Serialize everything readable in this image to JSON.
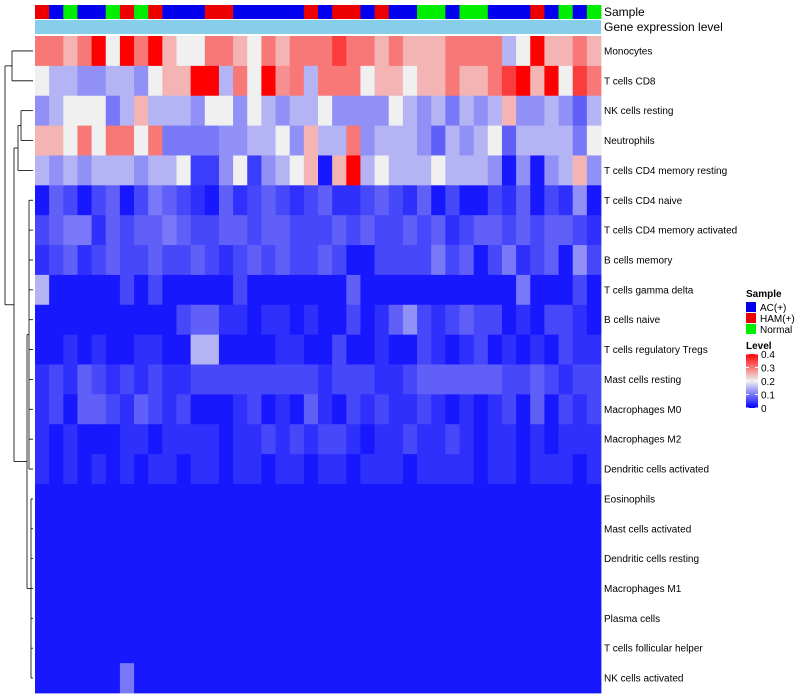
{
  "chart_data": {
    "type": "heatmap",
    "annotation_labels": {
      "sample": "Sample",
      "expression": "Gene expression level"
    },
    "rows": [
      "Monocytes",
      "T cells CD8",
      "NK cells resting",
      "Neutrophils",
      "T cells CD4 memory resting",
      "T cells CD4 naive",
      "T cells CD4 memory activated",
      "B cells memory",
      "T cells gamma delta",
      "B cells naive",
      "T cells regulatory  Tregs",
      "Mast cells resting",
      "Macrophages M0",
      "Macrophages M2",
      "Dendritic cells activated",
      "Eosinophils",
      "Mast cells activated",
      "Dendritic cells resting",
      "Macrophages M1",
      "Plasma cells",
      "T cells follicular helper",
      "NK cells activated"
    ],
    "sample_groups": [
      "HAM(+)",
      "AC(+)",
      "Normal",
      "AC(+)",
      "AC(+)",
      "Normal",
      "HAM(+)",
      "Normal",
      "HAM(+)",
      "AC(+)",
      "AC(+)",
      "AC(+)",
      "HAM(+)",
      "HAM(+)",
      "AC(+)",
      "AC(+)",
      "AC(+)",
      "AC(+)",
      "AC(+)",
      "HAM(+)",
      "AC(+)",
      "HAM(+)",
      "HAM(+)",
      "AC(+)",
      "HAM(+)",
      "AC(+)",
      "AC(+)",
      "Normal",
      "Normal",
      "AC(+)",
      "Normal",
      "Normal",
      "AC(+)",
      "AC(+)",
      "AC(+)",
      "HAM(+)",
      "AC(+)",
      "Normal",
      "AC(+)",
      "Normal"
    ],
    "values": [
      [
        0.3,
        0.3,
        0.25,
        0.3,
        0.4,
        0.2,
        0.4,
        0.3,
        0.4,
        0.25,
        0.2,
        0.2,
        0.3,
        0.3,
        0.25,
        0.2,
        0.3,
        0.25,
        0.3,
        0.3,
        0.3,
        0.35,
        0.3,
        0.3,
        0.25,
        0.3,
        0.25,
        0.25,
        0.25,
        0.3,
        0.3,
        0.3,
        0.3,
        0.15,
        0.2,
        0.4,
        0.25,
        0.25,
        0.3,
        0.25
      ],
      [
        0.2,
        0.15,
        0.15,
        0.12,
        0.12,
        0.15,
        0.15,
        0.12,
        0.2,
        0.25,
        0.25,
        0.4,
        0.4,
        0.15,
        0.3,
        0.2,
        0.4,
        0.28,
        0.3,
        0.15,
        0.3,
        0.3,
        0.3,
        0.2,
        0.25,
        0.25,
        0.2,
        0.25,
        0.25,
        0.3,
        0.25,
        0.25,
        0.3,
        0.35,
        0.4,
        0.25,
        0.4,
        0.2,
        0.35,
        0.3
      ],
      [
        0.12,
        0.15,
        0.2,
        0.2,
        0.2,
        0.1,
        0.15,
        0.25,
        0.15,
        0.15,
        0.15,
        0.12,
        0.2,
        0.2,
        0.12,
        0.2,
        0.15,
        0.12,
        0.15,
        0.15,
        0.2,
        0.12,
        0.12,
        0.12,
        0.12,
        0.2,
        0.15,
        0.12,
        0.15,
        0.1,
        0.15,
        0.12,
        0.15,
        0.25,
        0.12,
        0.12,
        0.15,
        0.12,
        0.08,
        0.15
      ],
      [
        0.25,
        0.25,
        0.2,
        0.3,
        0.2,
        0.3,
        0.3,
        0.2,
        0.3,
        0.1,
        0.1,
        0.1,
        0.1,
        0.12,
        0.12,
        0.15,
        0.15,
        0.2,
        0.12,
        0.25,
        0.15,
        0.15,
        0.3,
        0.12,
        0.15,
        0.15,
        0.15,
        0.12,
        0.08,
        0.15,
        0.12,
        0.15,
        0.2,
        0.08,
        0.15,
        0.15,
        0.15,
        0.15,
        0.1,
        0.2
      ],
      [
        0.15,
        0.12,
        0.15,
        0.12,
        0.15,
        0.15,
        0.15,
        0.12,
        0.15,
        0.15,
        0.2,
        0.05,
        0.05,
        0.12,
        0.2,
        0.05,
        0.12,
        0.15,
        0.2,
        0.25,
        0.02,
        0.25,
        0.4,
        0.15,
        0.2,
        0.15,
        0.15,
        0.15,
        0.2,
        0.15,
        0.15,
        0.15,
        0.12,
        0.02,
        0.12,
        0.02,
        0.12,
        0.15,
        0.25,
        0.12
      ],
      [
        0.02,
        0.08,
        0.06,
        0.02,
        0.06,
        0.08,
        0.02,
        0.06,
        0.1,
        0.08,
        0.06,
        0.04,
        0.02,
        0.08,
        0.04,
        0.06,
        0.08,
        0.06,
        0.04,
        0.06,
        0.08,
        0.04,
        0.04,
        0.06,
        0.08,
        0.06,
        0.04,
        0.08,
        0.02,
        0.06,
        0.02,
        0.02,
        0.06,
        0.04,
        0.08,
        0.02,
        0.06,
        0.04,
        0.12,
        0.02
      ],
      [
        0.06,
        0.08,
        0.1,
        0.1,
        0.04,
        0.08,
        0.06,
        0.08,
        0.08,
        0.1,
        0.08,
        0.06,
        0.06,
        0.08,
        0.08,
        0.06,
        0.08,
        0.08,
        0.06,
        0.06,
        0.06,
        0.08,
        0.06,
        0.08,
        0.06,
        0.06,
        0.08,
        0.06,
        0.08,
        0.04,
        0.06,
        0.08,
        0.08,
        0.06,
        0.08,
        0.06,
        0.08,
        0.08,
        0.06,
        0.04
      ],
      [
        0.04,
        0.06,
        0.08,
        0.04,
        0.06,
        0.08,
        0.06,
        0.06,
        0.08,
        0.06,
        0.06,
        0.08,
        0.06,
        0.04,
        0.06,
        0.08,
        0.06,
        0.08,
        0.06,
        0.06,
        0.08,
        0.06,
        0.02,
        0.02,
        0.06,
        0.06,
        0.06,
        0.06,
        0.1,
        0.06,
        0.08,
        0.02,
        0.06,
        0.1,
        0.04,
        0.06,
        0.08,
        0.02,
        0.12,
        0.06
      ],
      [
        0.15,
        0.02,
        0.02,
        0.02,
        0.02,
        0.02,
        0.06,
        0.02,
        0.06,
        0.02,
        0.02,
        0.02,
        0.02,
        0.02,
        0.06,
        0.02,
        0.02,
        0.02,
        0.02,
        0.02,
        0.02,
        0.02,
        0.08,
        0.02,
        0.02,
        0.02,
        0.02,
        0.02,
        0.02,
        0.02,
        0.02,
        0.02,
        0.02,
        0.02,
        0.1,
        0.02,
        0.02,
        0.02,
        0.06,
        0.02
      ],
      [
        0.02,
        0.02,
        0.02,
        0.02,
        0.02,
        0.02,
        0.02,
        0.02,
        0.02,
        0.02,
        0.06,
        0.08,
        0.08,
        0.04,
        0.04,
        0.02,
        0.04,
        0.04,
        0.02,
        0.04,
        0.02,
        0.02,
        0.06,
        0.02,
        0.04,
        0.08,
        0.12,
        0.06,
        0.04,
        0.06,
        0.08,
        0.06,
        0.06,
        0.02,
        0.04,
        0.02,
        0.06,
        0.06,
        0.04,
        0.02
      ],
      [
        0.02,
        0.02,
        0.04,
        0.02,
        0.04,
        0.02,
        0.02,
        0.04,
        0.04,
        0.02,
        0.02,
        0.15,
        0.15,
        0.02,
        0.02,
        0.02,
        0.02,
        0.04,
        0.04,
        0.02,
        0.02,
        0.06,
        0.02,
        0.02,
        0.04,
        0.02,
        0.02,
        0.06,
        0.04,
        0.02,
        0.04,
        0.06,
        0.02,
        0.04,
        0.02,
        0.04,
        0.02,
        0.06,
        0.04,
        0.04
      ],
      [
        0.04,
        0.06,
        0.04,
        0.08,
        0.06,
        0.04,
        0.06,
        0.04,
        0.06,
        0.04,
        0.04,
        0.06,
        0.06,
        0.06,
        0.06,
        0.06,
        0.06,
        0.06,
        0.06,
        0.06,
        0.04,
        0.06,
        0.06,
        0.06,
        0.04,
        0.04,
        0.06,
        0.08,
        0.08,
        0.08,
        0.08,
        0.08,
        0.08,
        0.06,
        0.06,
        0.08,
        0.06,
        0.04,
        0.06,
        0.06
      ],
      [
        0.04,
        0.06,
        0.02,
        0.08,
        0.08,
        0.06,
        0.04,
        0.08,
        0.06,
        0.04,
        0.06,
        0.02,
        0.02,
        0.02,
        0.04,
        0.06,
        0.02,
        0.04,
        0.02,
        0.08,
        0.04,
        0.02,
        0.06,
        0.04,
        0.06,
        0.04,
        0.04,
        0.06,
        0.04,
        0.02,
        0.04,
        0.02,
        0.04,
        0.06,
        0.02,
        0.08,
        0.02,
        0.06,
        0.04,
        0.06
      ],
      [
        0.04,
        0.02,
        0.04,
        0.02,
        0.02,
        0.02,
        0.04,
        0.04,
        0.02,
        0.04,
        0.04,
        0.04,
        0.04,
        0.02,
        0.04,
        0.04,
        0.06,
        0.04,
        0.06,
        0.04,
        0.06,
        0.06,
        0.04,
        0.02,
        0.04,
        0.04,
        0.06,
        0.04,
        0.04,
        0.06,
        0.04,
        0.02,
        0.04,
        0.04,
        0.02,
        0.04,
        0.02,
        0.04,
        0.04,
        0.04
      ],
      [
        0.04,
        0.02,
        0.04,
        0.02,
        0.04,
        0.02,
        0.04,
        0.02,
        0.04,
        0.04,
        0.02,
        0.04,
        0.04,
        0.02,
        0.04,
        0.04,
        0.02,
        0.04,
        0.04,
        0.02,
        0.04,
        0.04,
        0.02,
        0.04,
        0.04,
        0.04,
        0.02,
        0.04,
        0.04,
        0.04,
        0.04,
        0.02,
        0.04,
        0.04,
        0.02,
        0.04,
        0.04,
        0.04,
        0.02,
        0.04
      ],
      [
        0.02,
        0.02,
        0.02,
        0.02,
        0.02,
        0.02,
        0.02,
        0.02,
        0.02,
        0.02,
        0.02,
        0.02,
        0.02,
        0.02,
        0.02,
        0.02,
        0.02,
        0.02,
        0.02,
        0.02,
        0.02,
        0.02,
        0.02,
        0.02,
        0.02,
        0.02,
        0.02,
        0.02,
        0.02,
        0.02,
        0.02,
        0.02,
        0.02,
        0.02,
        0.02,
        0.02,
        0.02,
        0.02,
        0.02,
        0.02
      ],
      [
        0.02,
        0.02,
        0.02,
        0.02,
        0.02,
        0.02,
        0.02,
        0.02,
        0.02,
        0.02,
        0.02,
        0.02,
        0.02,
        0.02,
        0.02,
        0.02,
        0.02,
        0.02,
        0.02,
        0.02,
        0.02,
        0.02,
        0.02,
        0.02,
        0.02,
        0.02,
        0.02,
        0.02,
        0.02,
        0.02,
        0.02,
        0.02,
        0.02,
        0.02,
        0.02,
        0.02,
        0.02,
        0.02,
        0.02,
        0.02
      ],
      [
        0.02,
        0.02,
        0.02,
        0.02,
        0.02,
        0.02,
        0.02,
        0.02,
        0.02,
        0.02,
        0.02,
        0.02,
        0.02,
        0.02,
        0.02,
        0.02,
        0.02,
        0.02,
        0.02,
        0.02,
        0.02,
        0.02,
        0.02,
        0.02,
        0.02,
        0.02,
        0.02,
        0.02,
        0.02,
        0.02,
        0.02,
        0.02,
        0.02,
        0.02,
        0.02,
        0.02,
        0.02,
        0.02,
        0.02,
        0.02
      ],
      [
        0.02,
        0.02,
        0.02,
        0.02,
        0.02,
        0.02,
        0.02,
        0.02,
        0.02,
        0.02,
        0.02,
        0.02,
        0.02,
        0.02,
        0.02,
        0.02,
        0.02,
        0.02,
        0.02,
        0.02,
        0.02,
        0.02,
        0.02,
        0.02,
        0.02,
        0.02,
        0.02,
        0.02,
        0.02,
        0.02,
        0.02,
        0.02,
        0.02,
        0.02,
        0.02,
        0.02,
        0.02,
        0.02,
        0.02,
        0.02
      ],
      [
        0.02,
        0.02,
        0.02,
        0.02,
        0.02,
        0.02,
        0.02,
        0.02,
        0.02,
        0.02,
        0.02,
        0.02,
        0.02,
        0.02,
        0.02,
        0.02,
        0.02,
        0.02,
        0.02,
        0.02,
        0.02,
        0.02,
        0.02,
        0.02,
        0.02,
        0.02,
        0.02,
        0.02,
        0.02,
        0.02,
        0.02,
        0.02,
        0.02,
        0.02,
        0.02,
        0.02,
        0.02,
        0.02,
        0.02,
        0.02
      ],
      [
        0.02,
        0.02,
        0.02,
        0.02,
        0.02,
        0.02,
        0.02,
        0.02,
        0.02,
        0.02,
        0.02,
        0.02,
        0.02,
        0.02,
        0.02,
        0.02,
        0.02,
        0.02,
        0.02,
        0.02,
        0.02,
        0.02,
        0.02,
        0.02,
        0.02,
        0.02,
        0.02,
        0.02,
        0.02,
        0.02,
        0.02,
        0.02,
        0.02,
        0.02,
        0.02,
        0.02,
        0.02,
        0.02,
        0.02,
        0.02
      ],
      [
        0.02,
        0.02,
        0.02,
        0.02,
        0.02,
        0.02,
        0.1,
        0.02,
        0.02,
        0.02,
        0.02,
        0.02,
        0.02,
        0.02,
        0.02,
        0.02,
        0.02,
        0.02,
        0.02,
        0.02,
        0.02,
        0.02,
        0.02,
        0.02,
        0.02,
        0.02,
        0.02,
        0.02,
        0.02,
        0.02,
        0.02,
        0.02,
        0.02,
        0.02,
        0.02,
        0.02,
        0.02,
        0.02,
        0.02,
        0.02
      ]
    ],
    "legend": {
      "sample_title": "Sample",
      "groups": [
        {
          "name": "AC(+)",
          "color": "#0000EE"
        },
        {
          "name": "HAM(+)",
          "color": "#EE0000"
        },
        {
          "name": "Normal",
          "color": "#00EE00"
        }
      ],
      "level_title": "Level",
      "level_ticks": [
        "0.4",
        "0.3",
        "0.2",
        "0.1",
        "0"
      ],
      "level_tick_values": [
        0.4,
        0.3,
        0.2,
        0.1,
        0.0
      ],
      "range": [
        0,
        0.4
      ]
    },
    "colors": {
      "low": "#0000FF",
      "mid": "#F0F0F0",
      "high": "#FF0000",
      "expression_bar": "#87CEEB"
    }
  }
}
